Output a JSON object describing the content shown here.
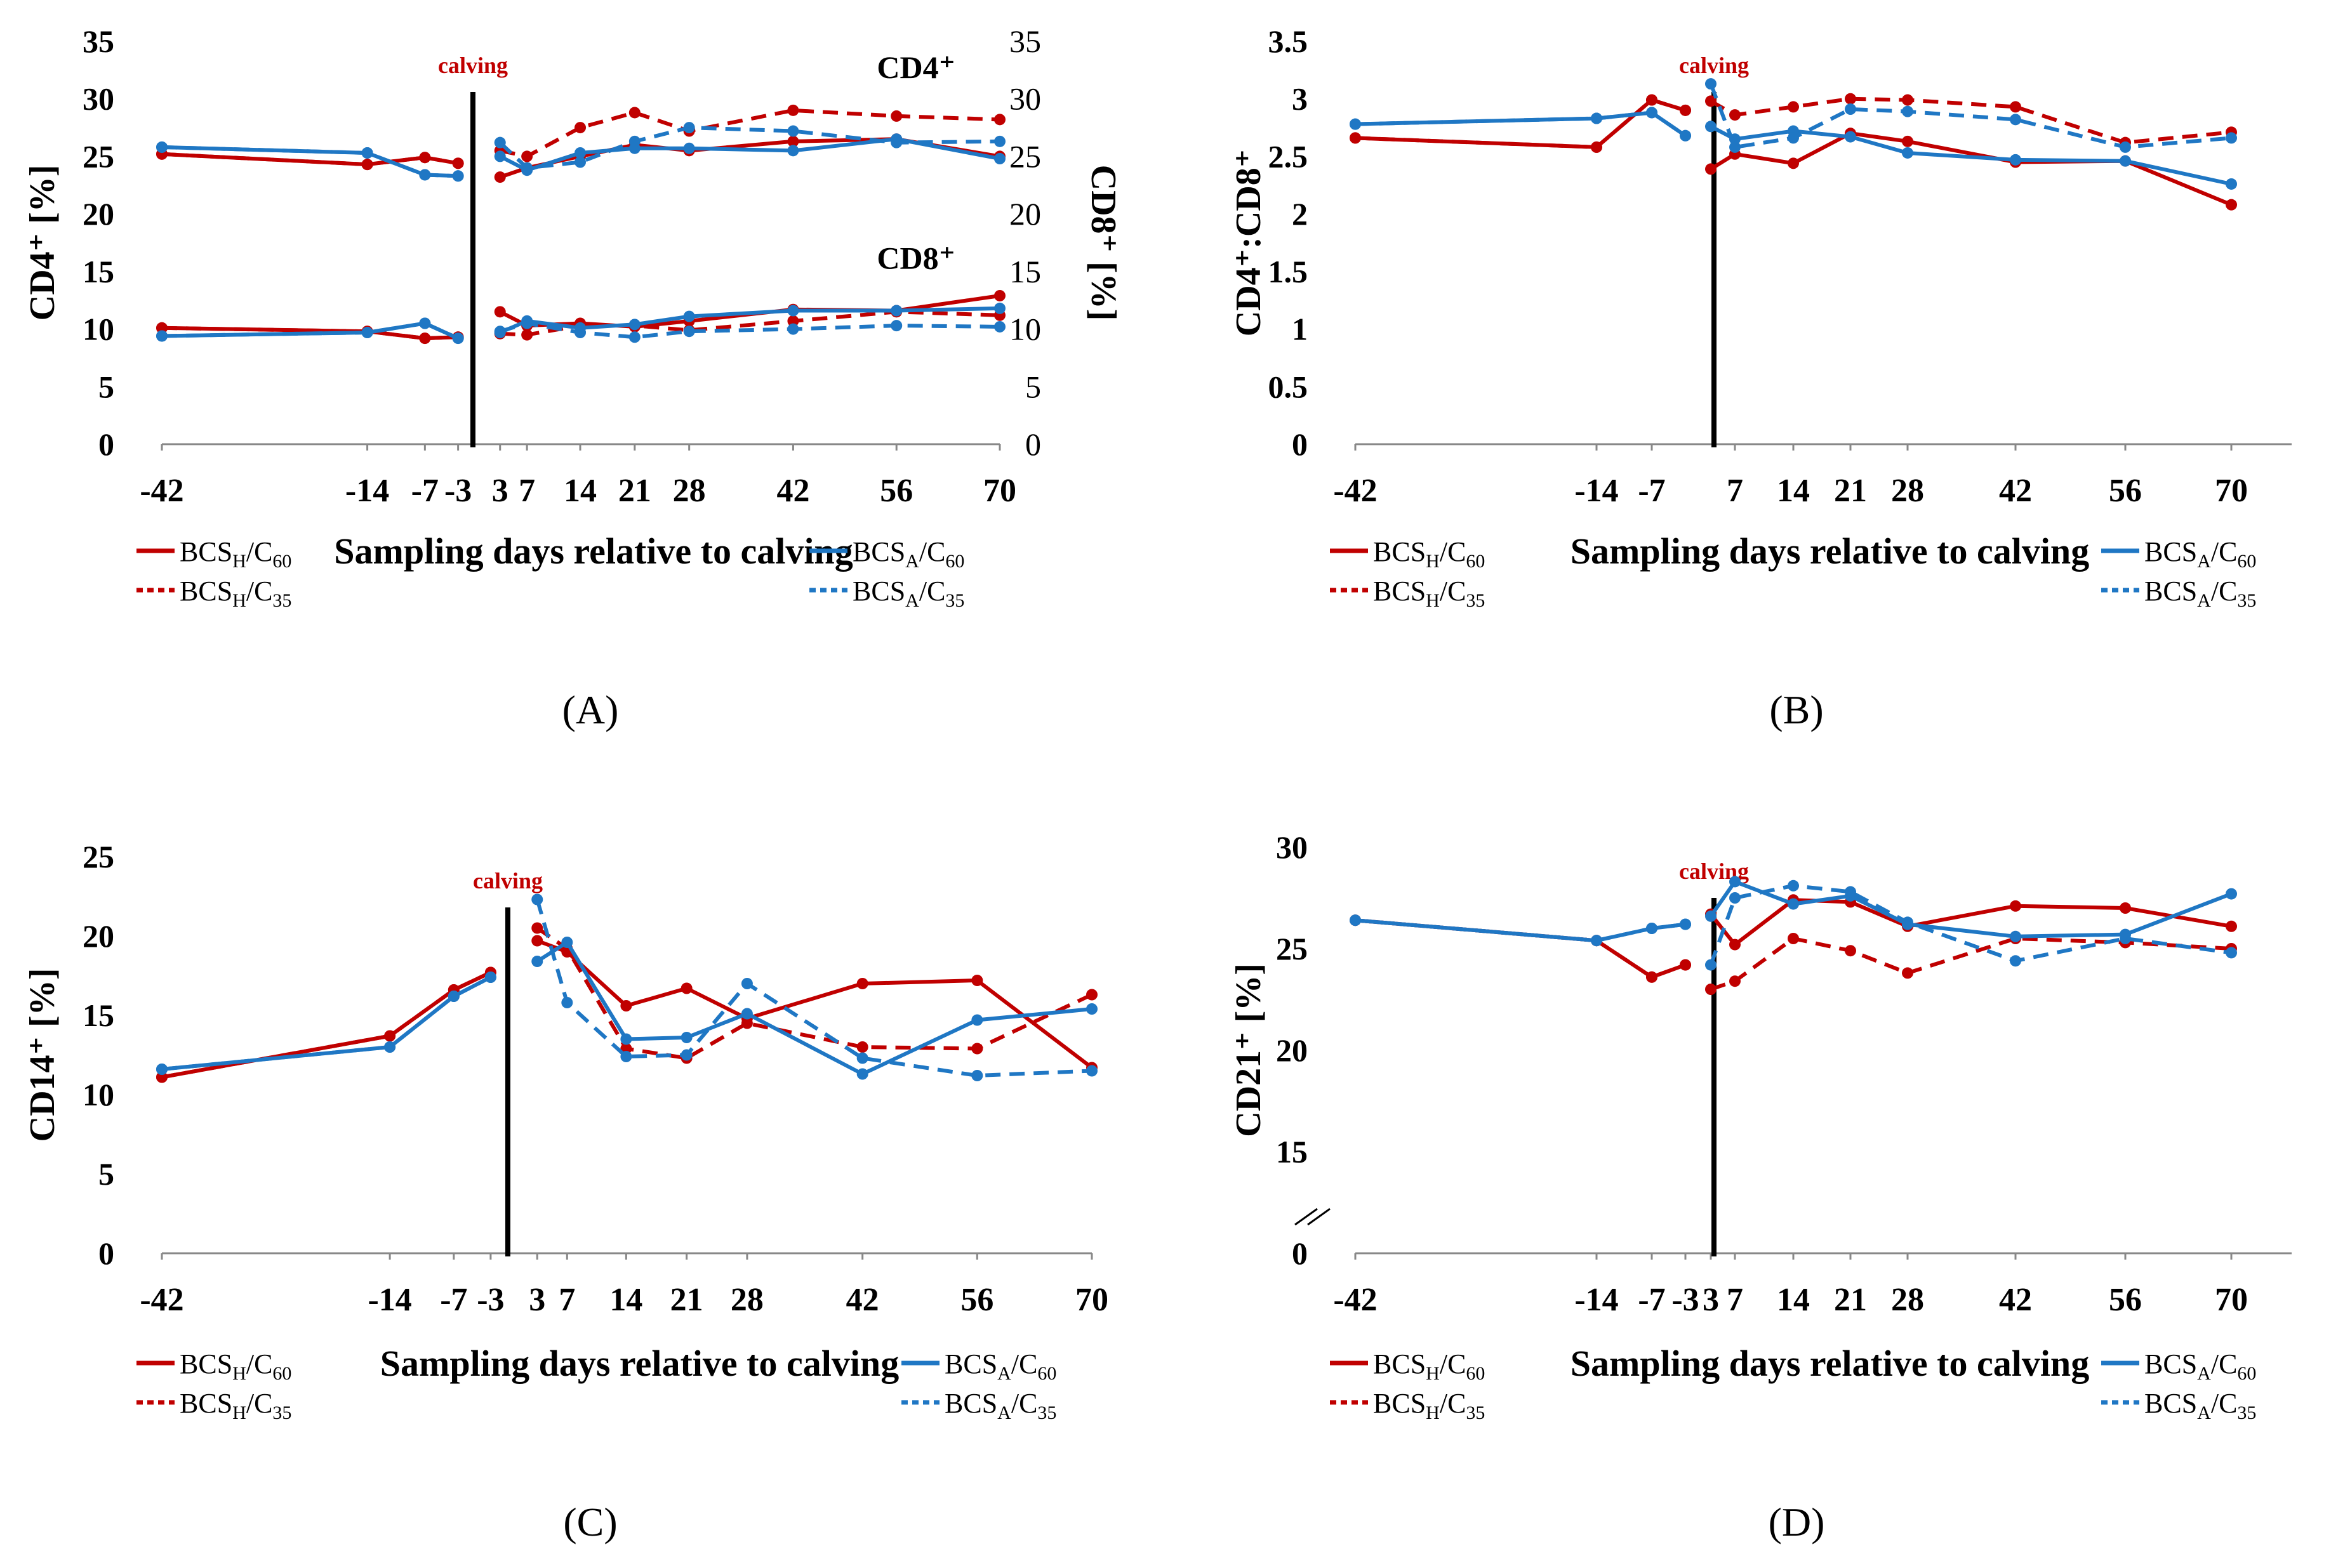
{
  "figure": {
    "x_axis_label": "Sampling days relative to calving",
    "calving_label": "calving",
    "sub_prefix_h": "H",
    "sub_prefix_a": "A"
  },
  "colors": {
    "red": "#c00000",
    "blue": "#1f77c4",
    "axis": "#000000"
  },
  "legend": {
    "items": [
      {
        "key": "H60",
        "base": "BCS",
        "sub1": "H",
        "mid": "/C",
        "sub2": "60",
        "color": "#c00000",
        "dashed": false
      },
      {
        "key": "H35",
        "base": "BCS",
        "sub1": "H",
        "mid": "/C",
        "sub2": "35",
        "color": "#c00000",
        "dashed": true
      },
      {
        "key": "A60",
        "base": "BCS",
        "sub1": "A",
        "mid": "/C",
        "sub2": "60",
        "color": "#1f77c4",
        "dashed": false
      },
      {
        "key": "A35",
        "base": "BCS",
        "sub1": "A",
        "mid": "/C",
        "sub2": "35",
        "color": "#1f77c4",
        "dashed": true
      }
    ]
  },
  "chart_data": [
    {
      "panel_label": "(A)",
      "type": "line",
      "ylabel": "CD4⁺ [%]",
      "ylabel_right": "CD8⁺ [%]",
      "ylim": [
        0,
        35
      ],
      "yticks": [
        "0",
        "5",
        "10",
        "15",
        "20",
        "25",
        "30",
        "35"
      ],
      "xticks": [
        "-42",
        "-14",
        "-7",
        "-3",
        "3",
        "7",
        "14",
        "21",
        "28",
        "42",
        "56",
        "70"
      ],
      "annotations": [
        "CD4⁺",
        "CD8⁺"
      ],
      "series": [
        {
          "name": "BCS_H/C60 CD4⁺ pre",
          "group": "H60",
          "x": [
            -42,
            -14,
            -7,
            -3
          ],
          "values": [
            25.2,
            24.3,
            24.9,
            24.4
          ]
        },
        {
          "name": "BCS_H/C35 CD4⁺ pre",
          "group": "H35",
          "x": [
            -42,
            -14,
            -7,
            -3
          ],
          "values": [
            25.2,
            24.3,
            24.9,
            24.4
          ]
        },
        {
          "name": "BCS_A/C60 CD4⁺ pre",
          "group": "A60",
          "x": [
            -42,
            -14,
            -7,
            -3
          ],
          "values": [
            25.8,
            25.3,
            23.4,
            23.3
          ]
        },
        {
          "name": "BCS_A/C35 CD4⁺ pre",
          "group": "A35",
          "x": [
            -42,
            -14,
            -7,
            -3
          ],
          "values": [
            25.8,
            25.3,
            23.4,
            23.3
          ]
        },
        {
          "name": "BCS_H/C60 CD4⁺ post",
          "group": "H60",
          "x": [
            3,
            7,
            14,
            21,
            28,
            42,
            56,
            70
          ],
          "values": [
            23.2,
            24.0,
            25.0,
            26.0,
            25.5,
            26.3,
            26.5,
            25.0
          ]
        },
        {
          "name": "BCS_H/C35 CD4⁺ post",
          "group": "H35",
          "x": [
            3,
            7,
            14,
            21,
            28,
            42,
            56,
            70
          ],
          "values": [
            25.5,
            25.0,
            27.5,
            28.8,
            27.2,
            29.0,
            28.5,
            28.2
          ]
        },
        {
          "name": "BCS_A/C60 CD4⁺ post",
          "group": "A60",
          "x": [
            3,
            7,
            14,
            21,
            28,
            42,
            56,
            70
          ],
          "values": [
            25.0,
            23.8,
            25.3,
            25.7,
            25.7,
            25.5,
            26.5,
            24.8
          ]
        },
        {
          "name": "BCS_A/C35 CD4⁺ post",
          "group": "A35",
          "x": [
            3,
            7,
            14,
            21,
            28,
            42,
            56,
            70
          ],
          "values": [
            26.2,
            24.0,
            24.5,
            26.3,
            27.5,
            27.2,
            26.2,
            26.3
          ]
        },
        {
          "name": "BCS_H/C60 CD8⁺ pre",
          "group": "H60",
          "x": [
            -42,
            -14,
            -7,
            -3
          ],
          "values": [
            10.1,
            9.8,
            9.2,
            9.3
          ]
        },
        {
          "name": "BCS_H/C35 CD8⁺ pre",
          "group": "H35",
          "x": [
            -42,
            -14,
            -7,
            -3
          ],
          "values": [
            10.1,
            9.8,
            9.2,
            9.3
          ]
        },
        {
          "name": "BCS_A/C60 CD8⁺ pre",
          "group": "A60",
          "x": [
            -42,
            -14,
            -7,
            -3
          ],
          "values": [
            9.4,
            9.7,
            10.5,
            9.2
          ]
        },
        {
          "name": "BCS_A/C35 CD8⁺ pre",
          "group": "A35",
          "x": [
            -42,
            -14,
            -7,
            -3
          ],
          "values": [
            9.4,
            9.7,
            10.5,
            9.2
          ]
        },
        {
          "name": "BCS_H/C60 CD8⁺ post",
          "group": "H60",
          "x": [
            3,
            7,
            14,
            21,
            28,
            42,
            56,
            70
          ],
          "values": [
            11.5,
            10.3,
            10.5,
            10.2,
            10.7,
            11.7,
            11.6,
            12.9
          ]
        },
        {
          "name": "BCS_H/C35 CD8⁺ post",
          "group": "H35",
          "x": [
            3,
            7,
            14,
            21,
            28,
            42,
            56,
            70
          ],
          "values": [
            9.6,
            9.5,
            10.3,
            10.3,
            9.9,
            10.7,
            11.5,
            11.2
          ]
        },
        {
          "name": "BCS_A/C60 CD8⁺ post",
          "group": "A60",
          "x": [
            3,
            7,
            14,
            21,
            28,
            42,
            56,
            70
          ],
          "values": [
            9.7,
            10.7,
            10.1,
            10.4,
            11.1,
            11.6,
            11.6,
            11.8
          ]
        },
        {
          "name": "BCS_A/C35 CD8⁺ post",
          "group": "A35",
          "x": [
            3,
            7,
            14,
            21,
            28,
            42,
            56,
            70
          ],
          "values": [
            9.8,
            10.5,
            9.7,
            9.3,
            9.8,
            10.0,
            10.3,
            10.2
          ]
        }
      ]
    },
    {
      "panel_label": "(B)",
      "type": "line",
      "ylabel": "CD4⁺:CD8⁺",
      "ylim": [
        0,
        3.5
      ],
      "yticks": [
        "0",
        "0.5",
        "1",
        "1.5",
        "2",
        "2.5",
        "3",
        "3.5"
      ],
      "xticks": [
        "-42",
        "-14",
        "-7",
        "7",
        "14",
        "21",
        "28",
        "42",
        "56",
        "70"
      ],
      "series": [
        {
          "name": "BCS_H/C60 pre",
          "group": "H60",
          "x": [
            -42,
            -14,
            -7,
            -3
          ],
          "values": [
            2.66,
            2.58,
            2.99,
            2.9
          ]
        },
        {
          "name": "BCS_H/C35 pre",
          "group": "H35",
          "x": [
            -42,
            -14,
            -7,
            -3
          ],
          "values": [
            2.66,
            2.58,
            2.99,
            2.9
          ]
        },
        {
          "name": "BCS_A/C60 pre",
          "group": "A60",
          "x": [
            -42,
            -14,
            -7,
            -3
          ],
          "values": [
            2.78,
            2.83,
            2.88,
            2.68
          ]
        },
        {
          "name": "BCS_A/C35 pre",
          "group": "A35",
          "x": [
            -42,
            -14,
            -7,
            -3
          ],
          "values": [
            2.78,
            2.83,
            2.88,
            2.68
          ]
        },
        {
          "name": "BCS_H/C60 post",
          "group": "H60",
          "x": [
            3,
            7,
            14,
            21,
            28,
            42,
            56,
            70
          ],
          "values": [
            2.39,
            2.52,
            2.44,
            2.7,
            2.63,
            2.45,
            2.46,
            2.08
          ]
        },
        {
          "name": "BCS_H/C35 post",
          "group": "H35",
          "x": [
            3,
            7,
            14,
            21,
            28,
            42,
            56,
            70
          ],
          "values": [
            2.98,
            2.86,
            2.93,
            3.0,
            2.99,
            2.93,
            2.62,
            2.71
          ]
        },
        {
          "name": "BCS_A/C60 post",
          "group": "A60",
          "x": [
            3,
            7,
            14,
            21,
            28,
            42,
            56,
            70
          ],
          "values": [
            2.76,
            2.65,
            2.72,
            2.67,
            2.53,
            2.47,
            2.46,
            2.26
          ]
        },
        {
          "name": "BCS_A/C35 post",
          "group": "A35",
          "x": [
            3,
            7,
            14,
            21,
            28,
            42,
            56,
            70
          ],
          "values": [
            3.13,
            2.58,
            2.66,
            2.91,
            2.89,
            2.82,
            2.58,
            2.66
          ]
        }
      ]
    },
    {
      "panel_label": "(C)",
      "type": "line",
      "ylabel": "CD14⁺ [%]",
      "ylim": [
        0,
        25
      ],
      "yticks": [
        "0",
        "5",
        "10",
        "15",
        "20",
        "25"
      ],
      "xticks": [
        "-42",
        "-14",
        "-7",
        "-3",
        "3",
        "7",
        "14",
        "21",
        "28",
        "42",
        "56",
        "70"
      ],
      "series": [
        {
          "name": "BCS_H/C60 pre",
          "group": "H60",
          "x": [
            -42,
            -14,
            -7,
            -3
          ],
          "values": [
            11.1,
            13.7,
            16.6,
            17.7
          ]
        },
        {
          "name": "BCS_H/C35 pre",
          "group": "H35",
          "x": [
            -42,
            -14,
            -7,
            -3
          ],
          "values": [
            11.1,
            13.7,
            16.6,
            17.7
          ]
        },
        {
          "name": "BCS_A/C60 pre",
          "group": "A60",
          "x": [
            -42,
            -14,
            -7,
            -3
          ],
          "values": [
            11.6,
            13.0,
            16.2,
            17.4
          ]
        },
        {
          "name": "BCS_A/C35 pre",
          "group": "A35",
          "x": [
            -42,
            -14,
            -7,
            -3
          ],
          "values": [
            11.6,
            13.0,
            16.2,
            17.4
          ]
        },
        {
          "name": "BCS_H/C60 post",
          "group": "H60",
          "x": [
            3,
            7,
            14,
            21,
            28,
            42,
            56,
            70
          ],
          "values": [
            19.7,
            19.0,
            15.6,
            16.7,
            14.8,
            17.0,
            17.2,
            11.7
          ]
        },
        {
          "name": "BCS_H/C35 post",
          "group": "H35",
          "x": [
            3,
            7,
            14,
            21,
            28,
            42,
            56,
            70
          ],
          "values": [
            20.5,
            19.2,
            12.9,
            12.3,
            14.5,
            13.0,
            12.9,
            16.3
          ]
        },
        {
          "name": "BCS_A/C60 post",
          "group": "A60",
          "x": [
            3,
            7,
            14,
            21,
            28,
            42,
            56,
            70
          ],
          "values": [
            18.4,
            19.6,
            13.5,
            13.6,
            15.1,
            11.3,
            14.7,
            15.4
          ]
        },
        {
          "name": "BCS_A/C35 post",
          "group": "A35",
          "x": [
            3,
            7,
            14,
            21,
            28,
            42,
            56,
            70
          ],
          "values": [
            22.3,
            15.8,
            12.4,
            12.5,
            17.0,
            12.3,
            11.2,
            11.5
          ]
        }
      ]
    },
    {
      "panel_label": "(D)",
      "type": "line",
      "ylabel": "CD21⁺ [%]",
      "ylim": [
        10,
        30
      ],
      "axis_break": true,
      "yticks": [
        "0",
        "15",
        "20",
        "25",
        "30"
      ],
      "xticks": [
        "-42",
        "-14",
        "-7",
        "-3",
        "3",
        "7",
        "14",
        "21",
        "28",
        "42",
        "56",
        "70"
      ],
      "series": [
        {
          "name": "BCS_H/C60 pre",
          "group": "H60",
          "x": [
            -42,
            -14,
            -7,
            -3
          ],
          "values": [
            26.4,
            25.4,
            23.6,
            24.2
          ]
        },
        {
          "name": "BCS_H/C35 pre",
          "group": "H35",
          "x": [
            -42,
            -14,
            -7,
            -3
          ],
          "values": [
            26.4,
            25.4,
            23.6,
            24.2
          ]
        },
        {
          "name": "BCS_A/C60 pre",
          "group": "A60",
          "x": [
            -42,
            -14,
            -7,
            -3
          ],
          "values": [
            26.4,
            25.4,
            26.0,
            26.2
          ]
        },
        {
          "name": "BCS_A/C35 pre",
          "group": "A35",
          "x": [
            -42,
            -14,
            -7,
            -3
          ],
          "values": [
            26.4,
            25.4,
            26.0,
            26.2
          ]
        },
        {
          "name": "BCS_H/C60 post",
          "group": "H60",
          "x": [
            3,
            7,
            14,
            21,
            28,
            42,
            56,
            70
          ],
          "values": [
            26.7,
            25.2,
            27.4,
            27.3,
            26.1,
            27.1,
            27.0,
            26.1
          ]
        },
        {
          "name": "BCS_H/C35 post",
          "group": "H35",
          "x": [
            3,
            7,
            14,
            21,
            28,
            42,
            56,
            70
          ],
          "values": [
            23.0,
            23.4,
            25.5,
            24.9,
            23.8,
            25.5,
            25.3,
            25.0
          ]
        },
        {
          "name": "BCS_A/C60 post",
          "group": "A60",
          "x": [
            3,
            7,
            14,
            21,
            28,
            42,
            56,
            70
          ],
          "values": [
            26.6,
            28.3,
            27.2,
            27.6,
            26.2,
            25.6,
            25.7,
            27.7
          ]
        },
        {
          "name": "BCS_A/C35 post",
          "group": "A35",
          "x": [
            3,
            7,
            14,
            21,
            28,
            42,
            56,
            70
          ],
          "values": [
            24.2,
            27.5,
            28.1,
            27.8,
            26.3,
            24.4,
            25.5,
            24.8
          ]
        }
      ]
    }
  ]
}
